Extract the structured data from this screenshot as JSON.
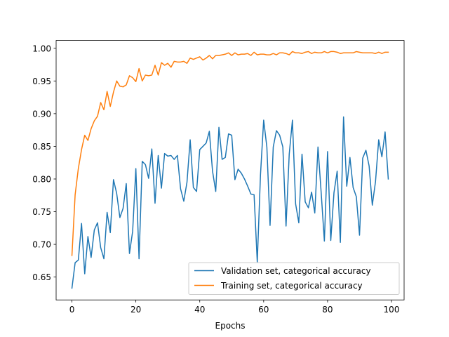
{
  "chart_data": {
    "type": "line",
    "title": "",
    "xlabel": "Epochs",
    "ylabel": "",
    "xlim": [
      -4.95,
      103.95
    ],
    "ylim": [
      0.615,
      1.012
    ],
    "xticks": [
      0,
      20,
      40,
      60,
      80,
      100
    ],
    "yticks": [
      0.65,
      0.7,
      0.75,
      0.8,
      0.85,
      0.9,
      0.95,
      1.0
    ],
    "ytick_labels": [
      "0.65",
      "0.70",
      "0.75",
      "0.80",
      "0.85",
      "0.90",
      "0.95",
      "1.00"
    ],
    "grid": false,
    "legend": "lower-right",
    "x": [
      0,
      1,
      2,
      3,
      4,
      5,
      6,
      7,
      8,
      9,
      10,
      11,
      12,
      13,
      14,
      15,
      16,
      17,
      18,
      19,
      20,
      21,
      22,
      23,
      24,
      25,
      26,
      27,
      28,
      29,
      30,
      31,
      32,
      33,
      34,
      35,
      36,
      37,
      38,
      39,
      40,
      41,
      42,
      43,
      44,
      45,
      46,
      47,
      48,
      49,
      50,
      51,
      52,
      53,
      54,
      55,
      56,
      57,
      58,
      59,
      60,
      61,
      62,
      63,
      64,
      65,
      66,
      67,
      68,
      69,
      70,
      71,
      72,
      73,
      74,
      75,
      76,
      77,
      78,
      79,
      80,
      81,
      82,
      83,
      84,
      85,
      86,
      87,
      88,
      89,
      90,
      91,
      92,
      93,
      94,
      95,
      96,
      97,
      98,
      99
    ],
    "series": [
      {
        "name": "Validation set, categorical accuracy",
        "color": "#1f77b4",
        "values": [
          0.633,
          0.672,
          0.676,
          0.732,
          0.655,
          0.712,
          0.68,
          0.722,
          0.733,
          0.695,
          0.678,
          0.749,
          0.718,
          0.799,
          0.778,
          0.741,
          0.755,
          0.793,
          0.686,
          0.72,
          0.816,
          0.678,
          0.827,
          0.822,
          0.801,
          0.846,
          0.763,
          0.836,
          0.786,
          0.839,
          0.835,
          0.836,
          0.83,
          0.836,
          0.785,
          0.766,
          0.795,
          0.86,
          0.787,
          0.781,
          0.845,
          0.85,
          0.855,
          0.873,
          0.812,
          0.781,
          0.879,
          0.83,
          0.833,
          0.869,
          0.867,
          0.799,
          0.815,
          0.809,
          0.8,
          0.789,
          0.777,
          0.776,
          0.673,
          0.806,
          0.89,
          0.849,
          0.729,
          0.849,
          0.874,
          0.867,
          0.849,
          0.728,
          0.838,
          0.89,
          0.762,
          0.733,
          0.838,
          0.765,
          0.756,
          0.78,
          0.748,
          0.849,
          0.779,
          0.705,
          0.842,
          0.706,
          0.779,
          0.812,
          0.703,
          0.895,
          0.789,
          0.833,
          0.787,
          0.773,
          0.714,
          0.832,
          0.844,
          0.82,
          0.76,
          0.796,
          0.86,
          0.834,
          0.872,
          0.8
        ]
      },
      {
        "name": "Training set, categorical accuracy",
        "color": "#ff7f0e",
        "values": [
          0.683,
          0.776,
          0.816,
          0.845,
          0.867,
          0.859,
          0.877,
          0.889,
          0.896,
          0.917,
          0.906,
          0.934,
          0.911,
          0.933,
          0.95,
          0.942,
          0.941,
          0.944,
          0.958,
          0.955,
          0.949,
          0.969,
          0.95,
          0.959,
          0.958,
          0.959,
          0.974,
          0.959,
          0.978,
          0.974,
          0.977,
          0.971,
          0.98,
          0.979,
          0.979,
          0.98,
          0.977,
          0.985,
          0.983,
          0.985,
          0.987,
          0.982,
          0.985,
          0.989,
          0.984,
          0.989,
          0.989,
          0.99,
          0.991,
          0.993,
          0.989,
          0.993,
          0.99,
          0.991,
          0.991,
          0.992,
          0.989,
          0.994,
          0.99,
          0.991,
          0.991,
          0.99,
          0.99,
          0.992,
          0.99,
          0.993,
          0.993,
          0.992,
          0.99,
          0.995,
          0.993,
          0.993,
          0.992,
          0.994,
          0.995,
          0.992,
          0.994,
          0.993,
          0.993,
          0.995,
          0.993,
          0.995,
          0.995,
          0.994,
          0.992,
          0.993,
          0.993,
          0.993,
          0.993,
          0.995,
          0.994,
          0.993,
          0.993,
          0.993,
          0.993,
          0.992,
          0.994,
          0.992,
          0.994,
          0.994
        ]
      }
    ]
  }
}
